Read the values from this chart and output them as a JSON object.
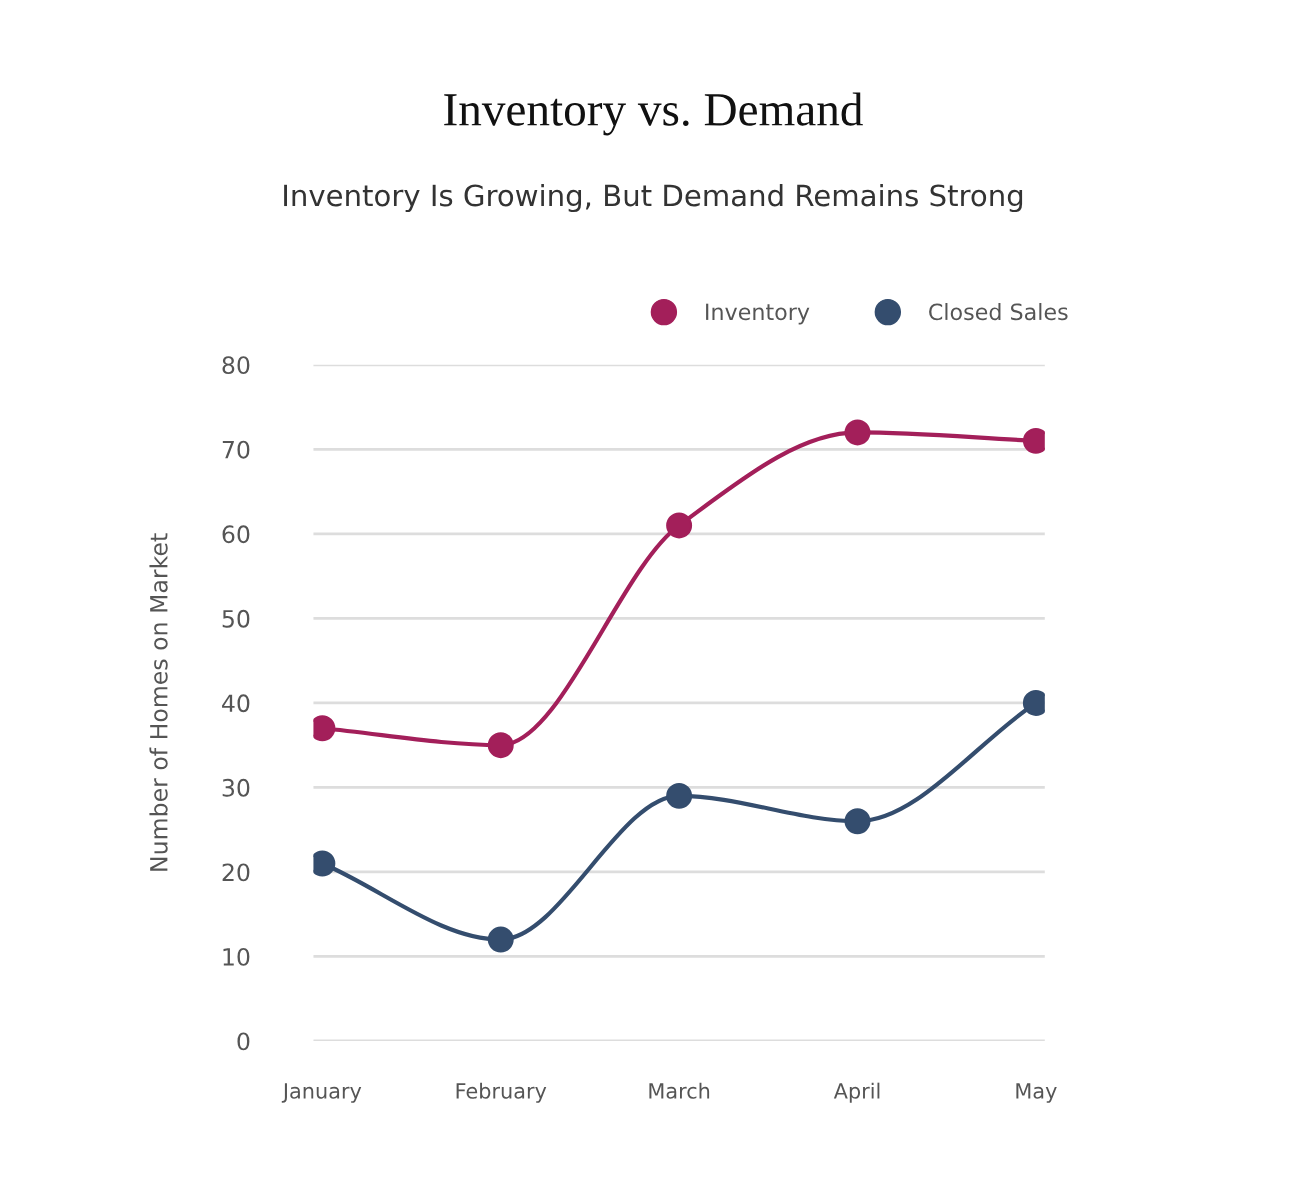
{
  "chart_data": {
    "type": "line",
    "title": "Inventory vs. Demand",
    "subtitle": "Inventory Is Growing, But Demand Remains Strong",
    "ylabel": "Number of Homes on Market",
    "categories": [
      "January",
      "February",
      "March",
      "April",
      "May"
    ],
    "series": [
      {
        "name": "Inventory",
        "color": "#a31f5a",
        "values": [
          37,
          35,
          61,
          72,
          71
        ]
      },
      {
        "name": "Closed Sales",
        "color": "#344d6e",
        "values": [
          21,
          12,
          29,
          26,
          40
        ]
      }
    ],
    "ylim": [
      0,
      80
    ],
    "yticks": [
      0,
      10,
      20,
      30,
      40,
      50,
      60,
      70,
      80
    ],
    "grid": "y",
    "legend": "top right",
    "marker": "circle",
    "line_style": "solid"
  }
}
